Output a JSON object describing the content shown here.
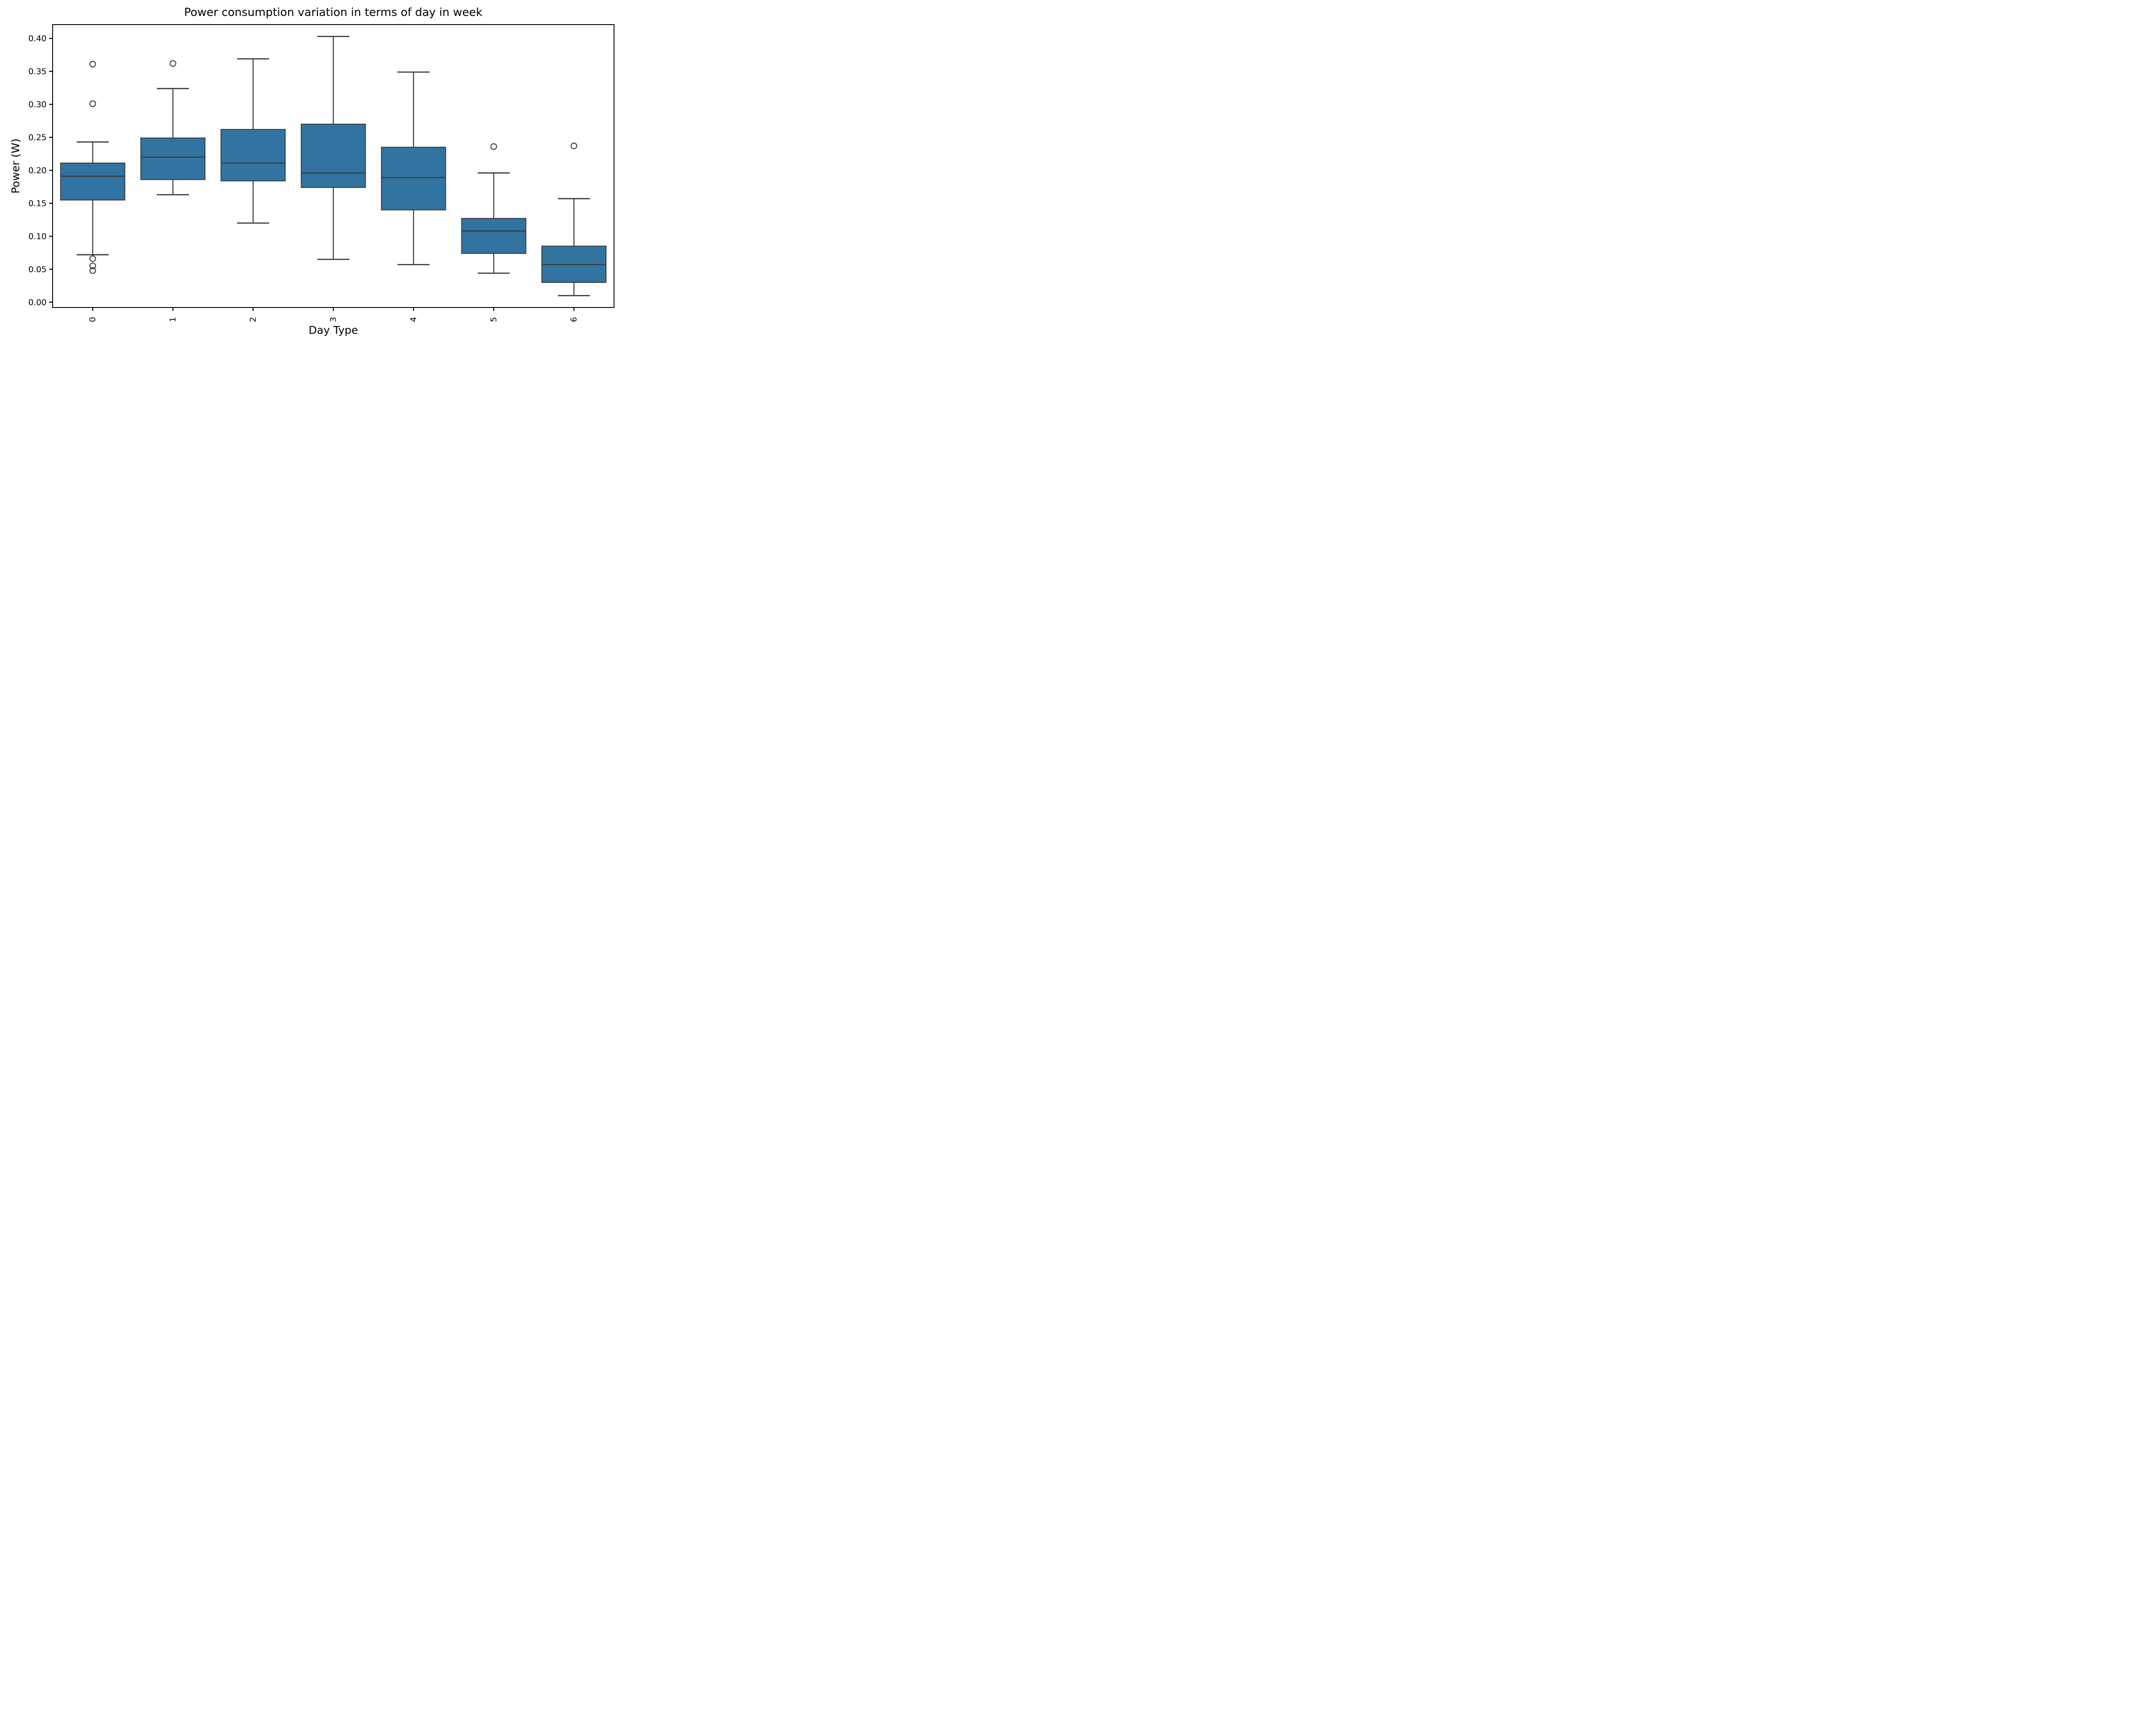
{
  "chart_data": {
    "type": "boxplot",
    "title": "Power consumption variation in terms of day in week",
    "xlabel": "Day Type",
    "ylabel": "Power (W)",
    "categories": [
      "0",
      "1",
      "2",
      "3",
      "4",
      "5",
      "6"
    ],
    "ylim": [
      -0.008,
      0.421
    ],
    "yticks": [
      {
        "value": 0.0,
        "label": "0.00"
      },
      {
        "value": 0.05,
        "label": "0.05"
      },
      {
        "value": 0.1,
        "label": "0.10"
      },
      {
        "value": 0.15,
        "label": "0.15"
      },
      {
        "value": 0.2,
        "label": "0.20"
      },
      {
        "value": 0.25,
        "label": "0.25"
      },
      {
        "value": 0.3,
        "label": "0.30"
      },
      {
        "value": 0.35,
        "label": "0.35"
      },
      {
        "value": 0.4,
        "label": "0.40"
      }
    ],
    "grid": false,
    "legend_position": "none",
    "x_tick_label_rotation_deg": 90,
    "colors": {
      "box_fill": "#3274a1",
      "box_line": "#3d3d3d",
      "axis": "#000000",
      "text": "#000000",
      "background": "#ffffff"
    },
    "series": [
      {
        "category": "0",
        "whisker_low": 0.072,
        "q1": 0.155,
        "median": 0.191,
        "q3": 0.211,
        "whisker_high": 0.243,
        "outliers": [
          0.361,
          0.301,
          0.066,
          0.055,
          0.048
        ]
      },
      {
        "category": "1",
        "whisker_low": 0.163,
        "q1": 0.186,
        "median": 0.22,
        "q3": 0.249,
        "whisker_high": 0.324,
        "outliers": [
          0.362
        ]
      },
      {
        "category": "2",
        "whisker_low": 0.12,
        "q1": 0.184,
        "median": 0.211,
        "q3": 0.262,
        "whisker_high": 0.369,
        "outliers": []
      },
      {
        "category": "3",
        "whisker_low": 0.065,
        "q1": 0.174,
        "median": 0.196,
        "q3": 0.27,
        "whisker_high": 0.403,
        "outliers": []
      },
      {
        "category": "4",
        "whisker_low": 0.057,
        "q1": 0.14,
        "median": 0.189,
        "q3": 0.235,
        "whisker_high": 0.349,
        "outliers": []
      },
      {
        "category": "5",
        "whisker_low": 0.044,
        "q1": 0.074,
        "median": 0.108,
        "q3": 0.127,
        "whisker_high": 0.196,
        "outliers": [
          0.236
        ]
      },
      {
        "category": "6",
        "whisker_low": 0.01,
        "q1": 0.03,
        "median": 0.057,
        "q3": 0.085,
        "whisker_high": 0.157,
        "outliers": [
          0.237
        ]
      }
    ]
  }
}
